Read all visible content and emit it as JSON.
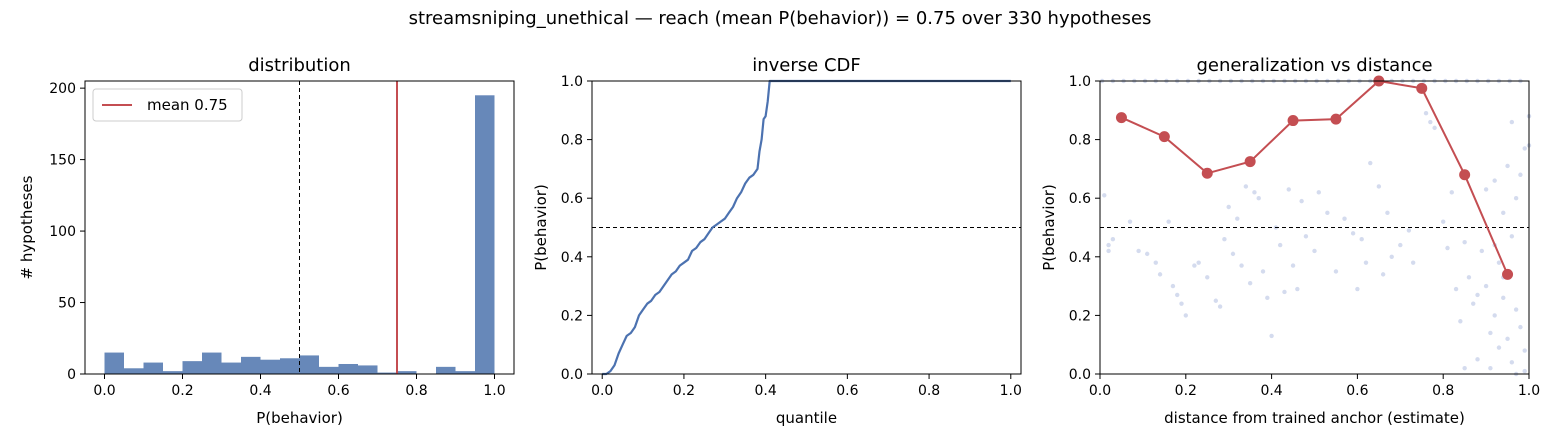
{
  "suptitle": "streamsniping_unethical  —  reach (mean P(behavior)) = 0.75  over 330 hypotheses",
  "colors": {
    "blue": "#6788b9",
    "line_blue": "#4c72b0",
    "red": "#c44e52",
    "scatter": "#c9d2ea"
  },
  "chart_data": [
    {
      "type": "bar",
      "title": "distribution",
      "xlabel": "P(behavior)",
      "ylabel": "# hypotheses",
      "xlim": [
        -0.05,
        1.05
      ],
      "ylim": [
        0,
        205
      ],
      "xticks": [
        "0.0",
        "0.2",
        "0.4",
        "0.6",
        "0.8",
        "1.0"
      ],
      "yticks": [
        "0",
        "50",
        "100",
        "150",
        "200"
      ],
      "bin_width": 0.05,
      "bin_starts": [
        0.0,
        0.05,
        0.1,
        0.15,
        0.2,
        0.25,
        0.3,
        0.35,
        0.4,
        0.45,
        0.5,
        0.55,
        0.6,
        0.65,
        0.7,
        0.75,
        0.8,
        0.85,
        0.9,
        0.95
      ],
      "values": [
        15,
        4,
        8,
        2,
        9,
        15,
        8,
        12,
        10,
        11,
        13,
        5,
        7,
        6,
        1,
        2,
        0,
        5,
        2,
        195
      ],
      "threshold": 0.5,
      "mean": 0.75,
      "legend": [
        "mean 0.75"
      ],
      "legend_position": "upper-left"
    },
    {
      "type": "line",
      "title": "inverse CDF",
      "xlabel": "quantile",
      "ylabel": "P(behavior)",
      "xlim": [
        -0.025,
        1.025
      ],
      "ylim": [
        0,
        1
      ],
      "xticks": [
        "0.0",
        "0.2",
        "0.4",
        "0.6",
        "0.8",
        "1.0"
      ],
      "yticks": [
        "0.0",
        "0.2",
        "0.4",
        "0.6",
        "0.8",
        "1.0"
      ],
      "threshold": 0.5,
      "x": [
        0.0,
        0.01,
        0.02,
        0.03,
        0.04,
        0.05,
        0.06,
        0.07,
        0.08,
        0.09,
        0.1,
        0.11,
        0.12,
        0.13,
        0.14,
        0.15,
        0.16,
        0.17,
        0.18,
        0.19,
        0.2,
        0.21,
        0.22,
        0.23,
        0.24,
        0.25,
        0.26,
        0.27,
        0.28,
        0.29,
        0.3,
        0.31,
        0.32,
        0.33,
        0.34,
        0.35,
        0.36,
        0.37,
        0.38,
        0.385,
        0.39,
        0.395,
        0.4,
        0.405,
        0.41,
        0.42,
        1.0
      ],
      "y": [
        0.0,
        0.0,
        0.01,
        0.03,
        0.07,
        0.1,
        0.13,
        0.14,
        0.16,
        0.2,
        0.22,
        0.24,
        0.25,
        0.27,
        0.28,
        0.3,
        0.32,
        0.34,
        0.35,
        0.37,
        0.38,
        0.39,
        0.42,
        0.43,
        0.45,
        0.46,
        0.48,
        0.5,
        0.51,
        0.52,
        0.53,
        0.55,
        0.57,
        0.6,
        0.62,
        0.65,
        0.67,
        0.68,
        0.7,
        0.76,
        0.8,
        0.87,
        0.88,
        0.93,
        1.0,
        1.0,
        1.0
      ]
    },
    {
      "type": "scatter",
      "title": "generalization vs distance",
      "xlabel": "distance from trained anchor (estimate)",
      "ylabel": "P(behavior)",
      "xlim": [
        0,
        1
      ],
      "ylim": [
        0,
        1
      ],
      "xticks": [
        "0.0",
        "0.2",
        "0.4",
        "0.6",
        "0.8",
        "1.0"
      ],
      "yticks": [
        "0.0",
        "0.2",
        "0.4",
        "0.6",
        "0.8",
        "1.0"
      ],
      "threshold": 0.5,
      "series": [
        {
          "x": [
            0.05,
            0.15,
            0.25,
            0.35,
            0.45,
            0.55,
            0.65,
            0.75,
            0.85,
            0.95
          ],
          "y": [
            0.875,
            0.81,
            0.685,
            0.725,
            0.865,
            0.87,
            1.0,
            0.975,
            0.68,
            0.34
          ]
        }
      ],
      "points": [
        [
          0.01,
          0.61
        ],
        [
          0.02,
          0.44
        ],
        [
          0.02,
          0.42
        ],
        [
          0.03,
          0.46
        ],
        [
          0.07,
          0.52
        ],
        [
          0.09,
          0.42
        ],
        [
          0.11,
          0.41
        ],
        [
          0.13,
          0.38
        ],
        [
          0.14,
          0.34
        ],
        [
          0.16,
          0.52
        ],
        [
          0.17,
          0.3
        ],
        [
          0.18,
          0.27
        ],
        [
          0.19,
          0.24
        ],
        [
          0.2,
          0.2
        ],
        [
          0.22,
          0.37
        ],
        [
          0.23,
          0.38
        ],
        [
          0.25,
          0.33
        ],
        [
          0.27,
          0.25
        ],
        [
          0.28,
          0.23
        ],
        [
          0.29,
          0.46
        ],
        [
          0.3,
          0.57
        ],
        [
          0.31,
          0.41
        ],
        [
          0.32,
          0.53
        ],
        [
          0.33,
          0.37
        ],
        [
          0.34,
          0.64
        ],
        [
          0.35,
          0.31
        ],
        [
          0.36,
          0.62
        ],
        [
          0.37,
          0.6
        ],
        [
          0.38,
          0.35
        ],
        [
          0.39,
          0.26
        ],
        [
          0.4,
          0.13
        ],
        [
          0.41,
          0.5
        ],
        [
          0.42,
          0.44
        ],
        [
          0.43,
          0.28
        ],
        [
          0.44,
          0.63
        ],
        [
          0.45,
          0.37
        ],
        [
          0.46,
          0.29
        ],
        [
          0.47,
          0.59
        ],
        [
          0.48,
          0.47
        ],
        [
          0.5,
          0.42
        ],
        [
          0.51,
          0.62
        ],
        [
          0.53,
          0.55
        ],
        [
          0.55,
          0.35
        ],
        [
          0.57,
          0.53
        ],
        [
          0.59,
          0.48
        ],
        [
          0.6,
          0.29
        ],
        [
          0.61,
          0.46
        ],
        [
          0.62,
          0.38
        ],
        [
          0.63,
          0.72
        ],
        [
          0.65,
          0.64
        ],
        [
          0.66,
          0.34
        ],
        [
          0.67,
          0.55
        ],
        [
          0.68,
          0.4
        ],
        [
          0.7,
          0.44
        ],
        [
          0.72,
          0.49
        ],
        [
          0.73,
          0.38
        ],
        [
          0.76,
          0.89
        ],
        [
          0.77,
          0.86
        ],
        [
          0.78,
          0.84
        ],
        [
          0.8,
          0.52
        ],
        [
          0.81,
          0.43
        ],
        [
          0.82,
          0.62
        ],
        [
          0.83,
          0.29
        ],
        [
          0.84,
          0.18
        ],
        [
          0.85,
          0.45
        ],
        [
          0.86,
          0.33
        ],
        [
          0.87,
          0.24
        ],
        [
          0.88,
          0.05
        ],
        [
          0.89,
          0.42
        ],
        [
          0.9,
          0.63
        ],
        [
          0.9,
          0.3
        ],
        [
          0.91,
          0.14
        ],
        [
          0.91,
          0.02
        ],
        [
          0.92,
          0.66
        ],
        [
          0.92,
          0.44
        ],
        [
          0.93,
          0.09
        ],
        [
          0.93,
          0.38
        ],
        [
          0.94,
          0.55
        ],
        [
          0.94,
          0.26
        ],
        [
          0.95,
          0.71
        ],
        [
          0.95,
          0.12
        ],
        [
          0.96,
          0.86
        ],
        [
          0.96,
          0.47
        ],
        [
          0.96,
          0.04
        ],
        [
          0.97,
          0.6
        ],
        [
          0.97,
          0.22
        ],
        [
          0.98,
          0.68
        ],
        [
          0.98,
          0.16
        ],
        [
          0.99,
          0.77
        ],
        [
          0.99,
          0.08
        ],
        [
          1.0,
          0.88
        ],
        [
          1.0,
          0.78
        ],
        [
          0.99,
          0.01
        ],
        [
          0.97,
          0.0
        ],
        [
          0.94,
          0.33
        ],
        [
          0.92,
          0.2
        ],
        [
          0.88,
          0.27
        ],
        [
          0.85,
          0.02
        ]
      ]
    }
  ]
}
